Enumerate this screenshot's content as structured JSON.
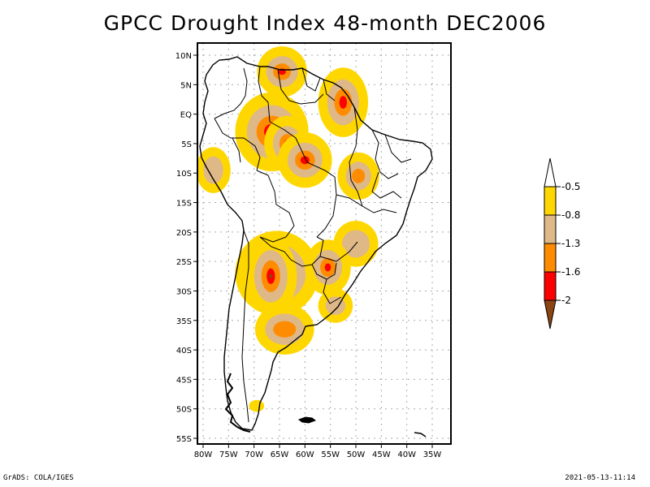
{
  "title": "GPCC Drought Index 48-month DEC2006",
  "footer": {
    "left": "GrADS: COLA/IGES",
    "right": "2021-05-13-11:14"
  },
  "map": {
    "region": "South America",
    "lon_range": [
      -81,
      -31
    ],
    "lat_range": [
      12,
      -56
    ],
    "lat_ticks": [
      {
        "value": 10,
        "label": "10N"
      },
      {
        "value": 5,
        "label": "5N"
      },
      {
        "value": 0,
        "label": "EQ"
      },
      {
        "value": -5,
        "label": "5S"
      },
      {
        "value": -10,
        "label": "10S"
      },
      {
        "value": -15,
        "label": "15S"
      },
      {
        "value": -20,
        "label": "20S"
      },
      {
        "value": -25,
        "label": "25S"
      },
      {
        "value": -30,
        "label": "30S"
      },
      {
        "value": -35,
        "label": "35S"
      },
      {
        "value": -40,
        "label": "40S"
      },
      {
        "value": -45,
        "label": "45S"
      },
      {
        "value": -50,
        "label": "50S"
      },
      {
        "value": -55,
        "label": "55S"
      }
    ],
    "lon_ticks": [
      {
        "value": -80,
        "label": "80W"
      },
      {
        "value": -75,
        "label": "75W"
      },
      {
        "value": -70,
        "label": "70W"
      },
      {
        "value": -65,
        "label": "65W"
      },
      {
        "value": -60,
        "label": "60W"
      },
      {
        "value": -55,
        "label": "55W"
      },
      {
        "value": -50,
        "label": "50W"
      },
      {
        "value": -45,
        "label": "45W"
      },
      {
        "value": -40,
        "label": "40W"
      },
      {
        "value": -35,
        "label": "35W"
      }
    ],
    "grid": "dotted"
  },
  "colorbar": {
    "levels": [
      "-0.5",
      "-0.8",
      "-1.3",
      "-1.6",
      "-2"
    ],
    "colors": {
      "above": "#ffffff",
      "c1": "#ffd700",
      "c2": "#deb887",
      "c3": "#ff8c00",
      "c4": "#ff0000",
      "below": "#8b4513"
    },
    "bins": [
      {
        "range": "> -0.5",
        "color": "#ffffff"
      },
      {
        "range": "-0.8 to -0.5",
        "color": "#ffd700"
      },
      {
        "range": "-1.3 to -0.8",
        "color": "#deb887"
      },
      {
        "range": "-1.6 to -1.3",
        "color": "#ff8c00"
      },
      {
        "range": "-2 to -1.6",
        "color": "#ff0000"
      },
      {
        "range": "< -2",
        "color": "#8b4513"
      }
    ]
  },
  "patches": [
    {
      "name": "venezuela-north",
      "lon": -64.5,
      "lat": 7.2,
      "rx": 2.2,
      "ry": 1.6,
      "level": 4
    },
    {
      "name": "guianas-amapa",
      "lon": -52.5,
      "lat": 2.0,
      "rx": 2.2,
      "ry": 3.2,
      "level": 4
    },
    {
      "name": "amazon-west",
      "lon": -66.5,
      "lat": -3.0,
      "rx": 4.5,
      "ry": 4.0,
      "level": 4
    },
    {
      "name": "amazon-mid",
      "lon": -63.5,
      "lat": -5.0,
      "rx": 1.8,
      "ry": 2.0,
      "level": 4
    },
    {
      "name": "mato-grosso",
      "lon": -60.0,
      "lat": -7.8,
      "rx": 2.6,
      "ry": 2.0,
      "level": 4
    },
    {
      "name": "peru-coast",
      "lon": -78.0,
      "lat": -9.5,
      "rx": 2.5,
      "ry": 3.0,
      "level": 2
    },
    {
      "name": "bahia-west",
      "lon": -49.5,
      "lat": -10.5,
      "rx": 2.3,
      "ry": 2.2,
      "level": 3
    },
    {
      "name": "minas",
      "lon": -50.0,
      "lat": -22.0,
      "rx": 3.5,
      "ry": 3.0,
      "level": 2
    },
    {
      "name": "chaco",
      "lon": -65.5,
      "lat": -27.0,
      "rx": 5.5,
      "ry": 4.5,
      "level": 4
    },
    {
      "name": "chaco-core",
      "lon": -66.7,
      "lat": -27.5,
      "rx": 1.5,
      "ry": 3.0,
      "level": 5
    },
    {
      "name": "parana",
      "lon": -55.5,
      "lat": -26.0,
      "rx": 1.8,
      "ry": 2.0,
      "level": 4
    },
    {
      "name": "uruguay",
      "lon": -54.0,
      "lat": -32.5,
      "rx": 2.5,
      "ry": 2.0,
      "level": 2
    },
    {
      "name": "pampas",
      "lon": -64.0,
      "lat": -36.5,
      "rx": 4.0,
      "ry": 2.5,
      "level": 3
    },
    {
      "name": "patagonia-south",
      "lon": -69.5,
      "lat": -49.5,
      "rx": 1.5,
      "ry": 1.0,
      "level": 1
    }
  ]
}
